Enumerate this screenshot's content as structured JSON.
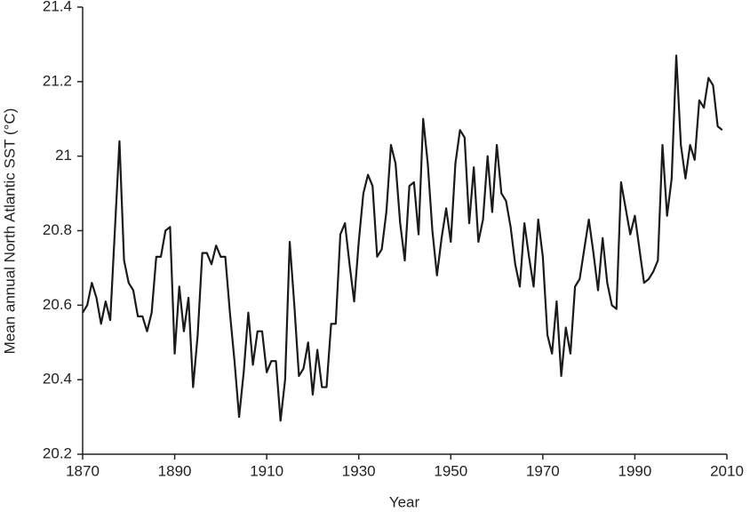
{
  "chart_data": {
    "type": "line",
    "x_label": "Year",
    "y_label": "Mean annual North Atlantic SST (°C)",
    "x": [
      1870,
      1871,
      1872,
      1873,
      1874,
      1875,
      1876,
      1877,
      1878,
      1879,
      1880,
      1881,
      1882,
      1883,
      1884,
      1885,
      1886,
      1887,
      1888,
      1889,
      1890,
      1891,
      1892,
      1893,
      1894,
      1895,
      1896,
      1897,
      1898,
      1899,
      1900,
      1901,
      1902,
      1903,
      1904,
      1905,
      1906,
      1907,
      1908,
      1909,
      1910,
      1911,
      1912,
      1913,
      1914,
      1915,
      1916,
      1917,
      1918,
      1919,
      1920,
      1921,
      1922,
      1923,
      1924,
      1925,
      1926,
      1927,
      1928,
      1929,
      1930,
      1931,
      1932,
      1933,
      1934,
      1935,
      1936,
      1937,
      1938,
      1939,
      1940,
      1941,
      1942,
      1943,
      1944,
      1945,
      1946,
      1947,
      1948,
      1949,
      1950,
      1951,
      1952,
      1953,
      1954,
      1955,
      1956,
      1957,
      1958,
      1959,
      1960,
      1961,
      1962,
      1963,
      1964,
      1965,
      1966,
      1967,
      1968,
      1969,
      1970,
      1971,
      1972,
      1973,
      1974,
      1975,
      1976,
      1977,
      1978,
      1979,
      1980,
      1981,
      1982,
      1983,
      1984,
      1985,
      1986,
      1987,
      1988,
      1989,
      1990,
      1991,
      1992,
      1993,
      1994,
      1995,
      1996,
      1997,
      1998,
      1999,
      2000,
      2001,
      2002,
      2003,
      2004,
      2005,
      2006,
      2007,
      2008,
      2009
    ],
    "series": [
      {
        "color": "#1a1a1a",
        "values": [
          20.58,
          20.6,
          20.66,
          20.62,
          20.55,
          20.61,
          20.56,
          20.8,
          21.04,
          20.72,
          20.66,
          20.64,
          20.57,
          20.57,
          20.53,
          20.58,
          20.73,
          20.73,
          20.8,
          20.81,
          20.47,
          20.65,
          20.53,
          20.62,
          20.38,
          20.52,
          20.74,
          20.74,
          20.71,
          20.76,
          20.73,
          20.73,
          20.58,
          20.45,
          20.3,
          20.42,
          20.58,
          20.44,
          20.53,
          20.53,
          20.42,
          20.45,
          20.45,
          20.29,
          20.4,
          20.77,
          20.6,
          20.41,
          20.43,
          20.5,
          20.36,
          20.48,
          20.38,
          20.38,
          20.55,
          20.55,
          20.79,
          20.82,
          20.71,
          20.61,
          20.77,
          20.9,
          20.95,
          20.92,
          20.73,
          20.75,
          20.85,
          21.03,
          20.98,
          20.82,
          20.72,
          20.92,
          20.93,
          20.79,
          21.1,
          20.98,
          20.8,
          20.68,
          20.78,
          20.86,
          20.77,
          20.98,
          21.07,
          21.05,
          20.82,
          20.97,
          20.77,
          20.83,
          21.0,
          20.85,
          21.03,
          20.9,
          20.88,
          20.81,
          20.71,
          20.65,
          20.82,
          20.73,
          20.65,
          20.83,
          20.73,
          20.52,
          20.47,
          20.61,
          20.41,
          20.54,
          20.47,
          20.65,
          20.67,
          20.75,
          20.83,
          20.74,
          20.64,
          20.78,
          20.66,
          20.6,
          20.59,
          20.93,
          20.86,
          20.79,
          20.84,
          20.75,
          20.66,
          20.67,
          20.69,
          20.72,
          21.03,
          20.84,
          20.94,
          21.27,
          21.03,
          20.94,
          21.03,
          20.99,
          21.15,
          21.13,
          21.21,
          21.19,
          21.08,
          21.07
        ]
      }
    ],
    "xlim": [
      1870,
      2010
    ],
    "xticks": [
      1870,
      1890,
      1910,
      1930,
      1950,
      1970,
      1990,
      2010
    ],
    "ylim": [
      20.2,
      21.4
    ],
    "yticks": [
      20.2,
      20.4,
      20.6,
      20.8,
      21,
      21.2,
      21.4
    ]
  }
}
